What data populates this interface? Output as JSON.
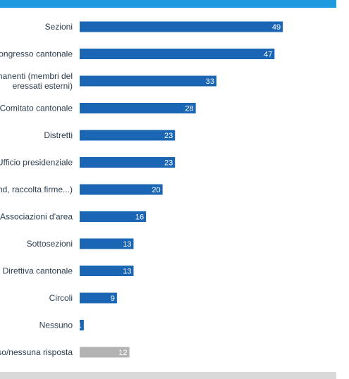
{
  "colors": {
    "bar": "#1a66b5",
    "bar_other": "#b3b3b3",
    "top_band": "#1e9be0",
    "bottom_band": "#d9d9d9"
  },
  "chart_data": {
    "type": "bar",
    "orientation": "horizontal",
    "categories": [
      [
        "Sezioni"
      ],
      [
        "Congresso cantonale"
      ],
      [
        "manenti (membri del",
        "eressati esterni)"
      ],
      [
        "Comitato cantonale"
      ],
      [
        "Distretti"
      ],
      [
        "Ufficio presidenziale"
      ],
      [
        "and, raccolta firme...)"
      ],
      [
        "Associazioni d'area"
      ],
      [
        "Sottosezioni"
      ],
      [
        "Direttiva cantonale"
      ],
      [
        "Circoli"
      ],
      [
        "Nessuno"
      ],
      [
        "so/nessuna risposta"
      ]
    ],
    "values": [
      49,
      47,
      33,
      28,
      23,
      23,
      20,
      16,
      13,
      13,
      9,
      1,
      12
    ],
    "highlight_last_gray": true,
    "xlim": [
      0,
      100
    ]
  }
}
